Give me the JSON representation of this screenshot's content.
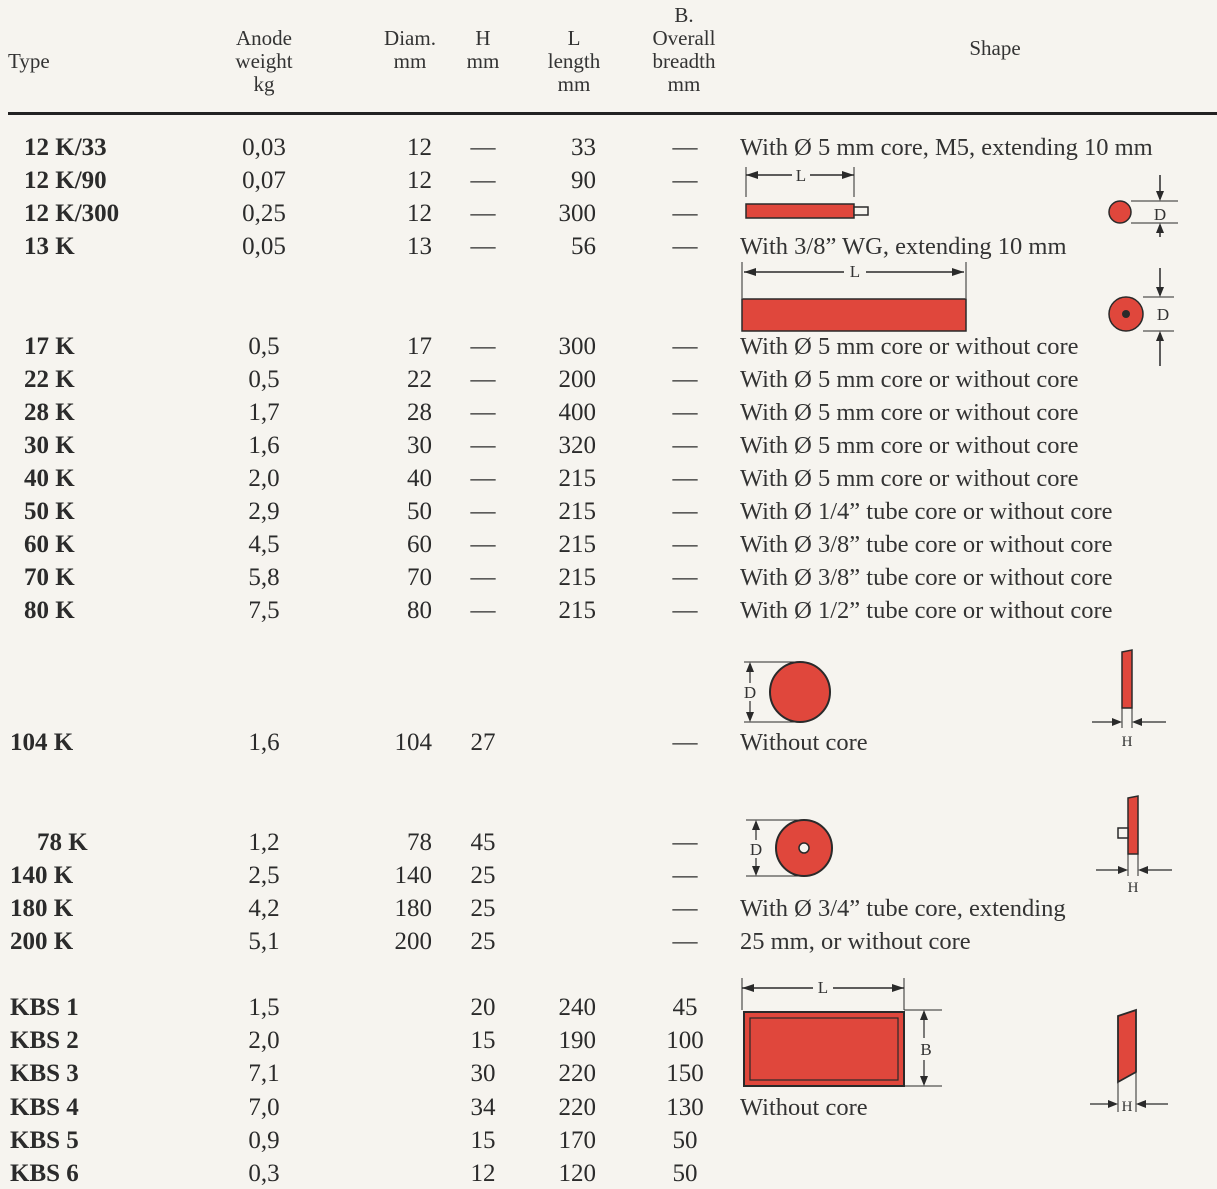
{
  "headers": {
    "type": "Type",
    "anode_weight": [
      "Anode",
      "weight",
      "kg"
    ],
    "diam": [
      "Diam.",
      "mm"
    ],
    "h": [
      "H",
      "mm"
    ],
    "length": [
      "L",
      "length",
      "mm"
    ],
    "breadth": [
      "B.",
      "Overall",
      "breadth",
      "mm"
    ],
    "shape": "Shape"
  },
  "rows": [
    {
      "type": "12 K/33",
      "weight": "0,03",
      "diam": "12",
      "h": "—",
      "length": "33",
      "breadth": "—"
    },
    {
      "type": "12 K/90",
      "weight": "0,07",
      "diam": "12",
      "h": "—",
      "length": "90",
      "breadth": "—"
    },
    {
      "type": "12 K/300",
      "weight": "0,25",
      "diam": "12",
      "h": "—",
      "length": "300",
      "breadth": "—"
    },
    {
      "type": "13 K",
      "weight": "0,05",
      "diam": "13",
      "h": "—",
      "length": "56",
      "breadth": "—"
    },
    {
      "type": "17 K",
      "weight": "0,5",
      "diam": "17",
      "h": "—",
      "length": "300",
      "breadth": "—"
    },
    {
      "type": "22 K",
      "weight": "0,5",
      "diam": "22",
      "h": "—",
      "length": "200",
      "breadth": "—"
    },
    {
      "type": "28 K",
      "weight": "1,7",
      "diam": "28",
      "h": "—",
      "length": "400",
      "breadth": "—"
    },
    {
      "type": "30 K",
      "weight": "1,6",
      "diam": "30",
      "h": "—",
      "length": "320",
      "breadth": "—"
    },
    {
      "type": "40 K",
      "weight": "2,0",
      "diam": "40",
      "h": "—",
      "length": "215",
      "breadth": "—"
    },
    {
      "type": "50 K",
      "weight": "2,9",
      "diam": "50",
      "h": "—",
      "length": "215",
      "breadth": "—"
    },
    {
      "type": "60 K",
      "weight": "4,5",
      "diam": "60",
      "h": "—",
      "length": "215",
      "breadth": "—"
    },
    {
      "type": "70 K",
      "weight": "5,8",
      "diam": "70",
      "h": "—",
      "length": "215",
      "breadth": "—"
    },
    {
      "type": "80 K",
      "weight": "7,5",
      "diam": "80",
      "h": "—",
      "length": "215",
      "breadth": "—"
    },
    {
      "type": "104 K",
      "weight": "1,6",
      "diam": "104",
      "h": "27",
      "length": "",
      "breadth": "—"
    },
    {
      "type": "78 K",
      "weight": "1,2",
      "diam": "78",
      "h": "45",
      "length": "",
      "breadth": "—"
    },
    {
      "type": "140 K",
      "weight": "2,5",
      "diam": "140",
      "h": "25",
      "length": "",
      "breadth": "—"
    },
    {
      "type": "180 K",
      "weight": "4,2",
      "diam": "180",
      "h": "25",
      "length": "",
      "breadth": "—"
    },
    {
      "type": "200 K",
      "weight": "5,1",
      "diam": "200",
      "h": "25",
      "length": "",
      "breadth": "—"
    },
    {
      "type": "KBS 1",
      "weight": "1,5",
      "diam": "",
      "h": "20",
      "length": "240",
      "breadth": "45"
    },
    {
      "type": "KBS 2",
      "weight": "2,0",
      "diam": "",
      "h": "15",
      "length": "190",
      "breadth": "100"
    },
    {
      "type": "KBS 3",
      "weight": "7,1",
      "diam": "",
      "h": "30",
      "length": "220",
      "breadth": "150"
    },
    {
      "type": "KBS 4",
      "weight": "7,0",
      "diam": "",
      "h": "34",
      "length": "220",
      "breadth": "130"
    },
    {
      "type": "KBS 5",
      "weight": "0,9",
      "diam": "",
      "h": "15",
      "length": "170",
      "breadth": "50"
    },
    {
      "type": "KBS 6",
      "weight": "0,3",
      "diam": "",
      "h": "12",
      "length": "120",
      "breadth": "50"
    }
  ],
  "shapes": [
    "With Ø 5 mm core, M5, extending 10 mm",
    "With 3/8” WG, extending 10 mm",
    "With Ø 5 mm core or without core",
    "With Ø 5 mm core or without core",
    "With Ø 5 mm core or without core",
    "With Ø 5 mm core or without core",
    "With Ø 5 mm core or without core",
    "With Ø 1/4” tube core or without core",
    "With Ø 3/8” tube core or without core",
    "With Ø 3/8” tube core or without core",
    "With Ø 1/2” tube core or without core",
    "Without core",
    "With Ø 3/4” tube core, extending",
    "25 mm, or without core",
    "Without core"
  ],
  "figure_labels": {
    "l": "L",
    "d": "D",
    "h": "H",
    "b": "B"
  },
  "colors": {
    "anode_red": "#e0473c",
    "outline": "#2a2a2a",
    "paper": "#f6f4ef"
  }
}
